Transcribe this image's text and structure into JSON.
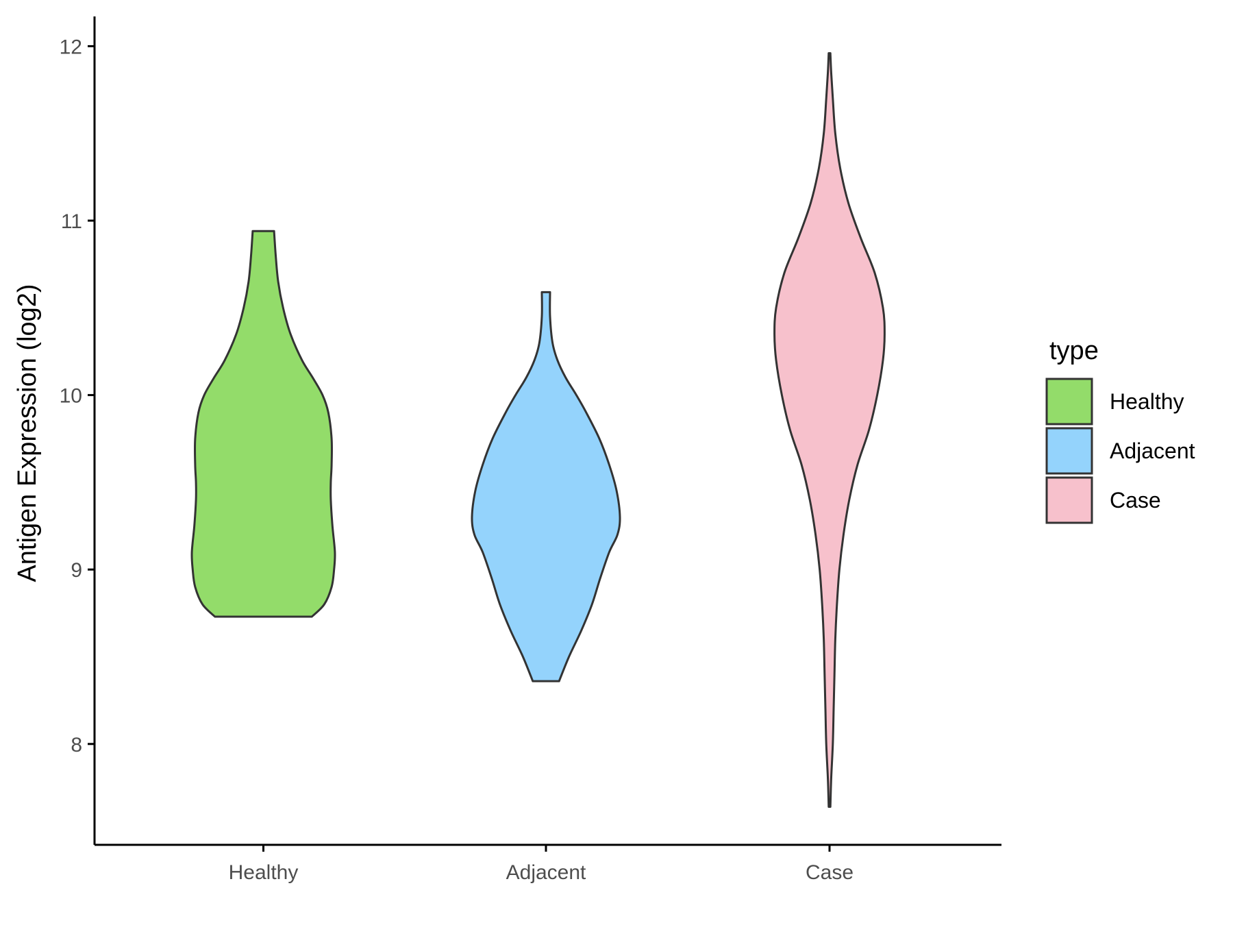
{
  "chart_data": {
    "type": "violin",
    "title": "",
    "xlabel": "",
    "ylabel": "Antigen Expression (log2)",
    "ylim": [
      7.45,
      12.2
    ],
    "y_ticks": [
      8,
      9,
      10,
      11,
      12
    ],
    "y_tick_labels": [
      "8",
      "9",
      "10",
      "11",
      "12"
    ],
    "categories": [
      "Healthy",
      "Adjacent",
      "Case"
    ],
    "grid": false,
    "legend": {
      "title": "type",
      "placement": "right",
      "entries": [
        "Healthy",
        "Adjacent",
        "Case"
      ]
    },
    "colors": {
      "Healthy": "#93dc6a",
      "Adjacent": "#94d3fc",
      "Case": "#f7c1cc",
      "outline": "#333333"
    },
    "series": [
      {
        "name": "Healthy",
        "min": 8.73,
        "max": 10.94,
        "density_profile": [
          [
            8.73,
            0.59
          ],
          [
            8.8,
            0.74
          ],
          [
            8.9,
            0.83
          ],
          [
            9.0,
            0.86
          ],
          [
            9.1,
            0.87
          ],
          [
            9.25,
            0.84
          ],
          [
            9.4,
            0.82
          ],
          [
            9.5,
            0.82
          ],
          [
            9.6,
            0.83
          ],
          [
            9.75,
            0.83
          ],
          [
            9.9,
            0.79
          ],
          [
            10.0,
            0.72
          ],
          [
            10.1,
            0.6
          ],
          [
            10.2,
            0.47
          ],
          [
            10.35,
            0.33
          ],
          [
            10.5,
            0.24
          ],
          [
            10.65,
            0.18
          ],
          [
            10.8,
            0.15
          ],
          [
            10.94,
            0.13
          ]
        ]
      },
      {
        "name": "Adjacent",
        "min": 8.36,
        "max": 10.59,
        "density_profile": [
          [
            8.36,
            0.16
          ],
          [
            8.5,
            0.28
          ],
          [
            8.65,
            0.43
          ],
          [
            8.8,
            0.56
          ],
          [
            8.95,
            0.66
          ],
          [
            9.1,
            0.77
          ],
          [
            9.2,
            0.87
          ],
          [
            9.3,
            0.9
          ],
          [
            9.45,
            0.86
          ],
          [
            9.6,
            0.77
          ],
          [
            9.75,
            0.65
          ],
          [
            9.9,
            0.49
          ],
          [
            10.0,
            0.37
          ],
          [
            10.1,
            0.24
          ],
          [
            10.2,
            0.14
          ],
          [
            10.3,
            0.08
          ],
          [
            10.45,
            0.05
          ],
          [
            10.59,
            0.05
          ]
        ]
      },
      {
        "name": "Case",
        "min": 7.64,
        "max": 11.96,
        "density_profile": [
          [
            7.64,
            0.01
          ],
          [
            7.8,
            0.02
          ],
          [
            8.0,
            0.04
          ],
          [
            8.2,
            0.05
          ],
          [
            8.4,
            0.06
          ],
          [
            8.6,
            0.07
          ],
          [
            8.8,
            0.09
          ],
          [
            9.0,
            0.12
          ],
          [
            9.2,
            0.17
          ],
          [
            9.4,
            0.24
          ],
          [
            9.6,
            0.34
          ],
          [
            9.8,
            0.48
          ],
          [
            10.0,
            0.58
          ],
          [
            10.2,
            0.65
          ],
          [
            10.35,
            0.67
          ],
          [
            10.5,
            0.65
          ],
          [
            10.7,
            0.55
          ],
          [
            10.9,
            0.38
          ],
          [
            11.1,
            0.23
          ],
          [
            11.3,
            0.13
          ],
          [
            11.5,
            0.07
          ],
          [
            11.7,
            0.04
          ],
          [
            11.85,
            0.02
          ],
          [
            11.96,
            0.01
          ]
        ]
      }
    ]
  }
}
